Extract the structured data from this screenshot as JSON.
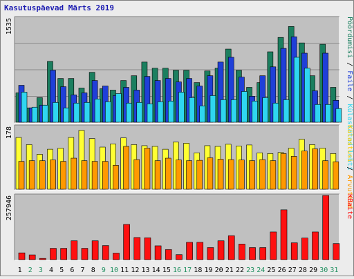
{
  "title": "Kasutuspäevad Märts 2019",
  "colors": {
    "page_bg": "#ececec",
    "panel_bg": "#c0c0c0",
    "hits": "#1b7f5f",
    "files": "#1f3fd8",
    "pages": "#2fd6f0",
    "visits": "#ffff33",
    "sites": "#ff9900",
    "kbytes": "#ff1010",
    "weekday_label": "#000000",
    "weekend_label": "#1f8f5f"
  },
  "legend_right": {
    "top": [
      {
        "text": "Pöördumisi",
        "color": "#1b7f5f"
      },
      {
        "text": " / ",
        "color": "#000000"
      },
      {
        "text": "Faile",
        "color": "#1f3fd8"
      },
      {
        "text": " / ",
        "color": "#000000"
      },
      {
        "text": "Külastatud lehti",
        "color": "#2fd6f0"
      }
    ],
    "middle": [
      {
        "text": "Külastusi",
        "color": "#ffcc00"
      },
      {
        "text": " / ",
        "color": "#000000"
      },
      {
        "text": "Arvuteid",
        "color": "#ff9900"
      }
    ],
    "bottom": [
      {
        "text": "KBaite",
        "color": "#ff1010"
      }
    ]
  },
  "chart_data": {
    "type": "bar",
    "title": "Kasutuspäevad Märts 2019",
    "categories": [
      "1",
      "2",
      "3",
      "4",
      "5",
      "6",
      "7",
      "8",
      "9",
      "10",
      "11",
      "12",
      "13",
      "14",
      "15",
      "16",
      "17",
      "18",
      "19",
      "20",
      "21",
      "22",
      "23",
      "24",
      "25",
      "26",
      "27",
      "28",
      "29",
      "30",
      "31"
    ],
    "weekend_days": [
      "2",
      "3",
      "9",
      "10",
      "16",
      "17",
      "23",
      "24",
      "30",
      "31"
    ],
    "panels": [
      {
        "ymax": 1535,
        "ymax_label": "1535",
        "series": [
          {
            "name": "Pöördumisi",
            "values": [
              430,
              210,
              360,
              890,
              640,
              640,
              500,
              730,
              490,
              470,
              610,
              680,
              880,
              790,
              790,
              760,
              760,
              580,
              750,
              790,
              1070,
              760,
              510,
              580,
              1030,
              1240,
              1400,
              1160,
              680,
              1140,
              510
            ]
          },
          {
            "name": "Faile",
            "values": [
              540,
              210,
              250,
              760,
              520,
              400,
              430,
              610,
              530,
              390,
              510,
              470,
              670,
              610,
              640,
              590,
              640,
              530,
              680,
              880,
              950,
              660,
              380,
              680,
              810,
              1080,
              1250,
              1010,
              460,
              1010,
              320
            ]
          },
          {
            "name": "Külastatud lehti",
            "values": [
              440,
              220,
              250,
              290,
              210,
              280,
              290,
              340,
              300,
              420,
              280,
              290,
              270,
              300,
              310,
              440,
              360,
              240,
              390,
              330,
              330,
              450,
              310,
              360,
              280,
              330,
              950,
              790,
              260,
              260,
              200
            ]
          }
        ]
      },
      {
        "ymax": 178,
        "ymax_label": "178",
        "series": [
          {
            "name": "Külastusi",
            "values": [
              145,
              125,
              98,
              112,
              115,
              145,
              165,
              142,
              118,
              127,
              144,
              125,
              122,
              120,
              112,
              132,
              129,
              102,
              122,
              120,
              126,
              121,
              124,
              102,
              100,
              103,
              115,
              140,
              125,
              115,
              100
            ]
          },
          {
            "name": "Arvuteid",
            "values": [
              78,
              80,
              80,
              82,
              78,
              87,
              80,
              78,
              78,
              67,
              120,
              83,
              115,
              80,
              87,
              82,
              80,
              81,
              88,
              84,
              83,
              82,
              80,
              83,
              80,
              100,
              92,
              107,
              113,
              80,
              77
            ]
          }
        ]
      },
      {
        "ymax": 257946,
        "ymax_label": "257946",
        "series": [
          {
            "name": "KBaite",
            "values": [
              27000,
              19000,
              5000,
              45000,
              45000,
              75000,
              45000,
              75000,
              56000,
              26000,
              140000,
              88000,
              87000,
              55000,
              40000,
              20000,
              69000,
              69000,
              48000,
              75000,
              95000,
              62000,
              48000,
              48000,
              110000,
              198000,
              67000,
              86000,
              110000,
              255000,
              64000
            ]
          }
        ]
      }
    ]
  }
}
